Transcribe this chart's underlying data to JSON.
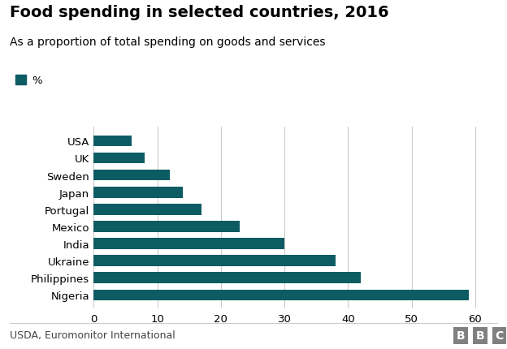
{
  "title": "Food spending in selected countries, 2016",
  "subtitle": "As a proportion of total spending on goods and services",
  "legend_label": "%",
  "source": "USDA, Euromonitor International",
  "categories": [
    "Nigeria",
    "Philippines",
    "Ukraine",
    "India",
    "Mexico",
    "Portugal",
    "Japan",
    "Sweden",
    "UK",
    "USA"
  ],
  "values": [
    59,
    42,
    38,
    30,
    23,
    17,
    14,
    12,
    8,
    6
  ],
  "bar_color": "#0d5c63",
  "background_color": "#ffffff",
  "xlim": [
    0,
    63
  ],
  "xticks": [
    0,
    10,
    20,
    30,
    40,
    50,
    60
  ],
  "title_fontsize": 14,
  "subtitle_fontsize": 10,
  "tick_fontsize": 9.5,
  "source_fontsize": 9,
  "legend_fontsize": 9.5,
  "bbc_fontsize": 10,
  "figsize": [
    6.24,
    4.31
  ],
  "dpi": 100
}
